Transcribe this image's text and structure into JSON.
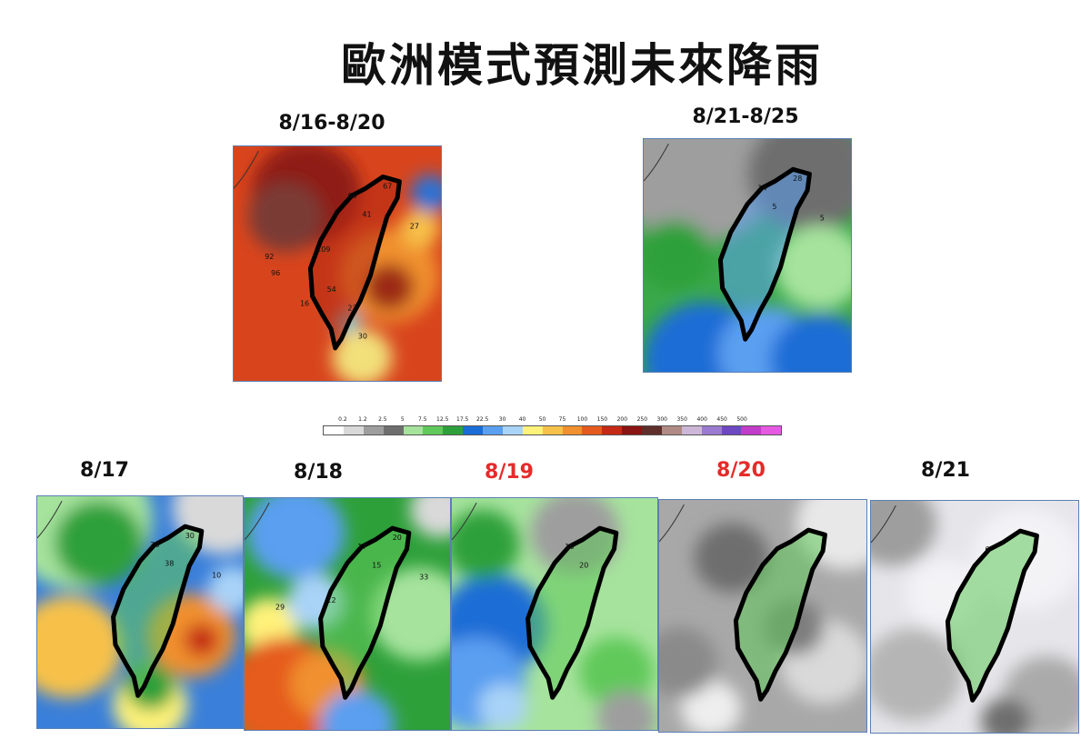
{
  "title": "歐洲模式預測未來降雨",
  "top_panels": [
    {
      "label": "8/16-8/20",
      "label_color": "#111111",
      "scheme": "heavy",
      "values": [
        "60",
        "41",
        "67",
        "27",
        "109",
        "92",
        "96",
        "54",
        "16",
        "23",
        "30"
      ]
    },
    {
      "label": "8/21-8/25",
      "label_color": "#111111",
      "scheme": "wet",
      "values": [
        "14",
        "5",
        "28",
        "5"
      ]
    }
  ],
  "bottom_panels": [
    {
      "label": "8/17",
      "label_color": "#111111",
      "scheme": "warm",
      "values": [
        "28",
        "38",
        "30",
        "10"
      ]
    },
    {
      "label": "8/18",
      "label_color": "#111111",
      "scheme": "mixed",
      "values": [
        "17",
        "15",
        "20",
        "33",
        "12",
        "29"
      ]
    },
    {
      "label": "8/19",
      "label_color": "#e62a2a",
      "scheme": "greenblue",
      "values": [
        "16",
        "20"
      ]
    },
    {
      "label": "8/20",
      "label_color": "#e62a2a",
      "scheme": "gray",
      "values": []
    },
    {
      "label": "8/21",
      "label_color": "#111111",
      "scheme": "light",
      "values": [
        "6"
      ]
    }
  ],
  "colorbar": {
    "ticks": [
      "0.2",
      "1.2",
      "2.5",
      "5",
      "7.5",
      "12.5",
      "17.5",
      "22.5",
      "30",
      "40",
      "50",
      "75",
      "100",
      "150",
      "200",
      "250",
      "300",
      "350",
      "400",
      "450",
      "500"
    ],
    "colors": [
      "#ffffff",
      "#d9d9d9",
      "#9e9e9e",
      "#6e6e6e",
      "#a6e39d",
      "#61c95a",
      "#2ea03a",
      "#1a6dd6",
      "#5a9ff0",
      "#a9d3f7",
      "#fff27a",
      "#f7c14a",
      "#f0902e",
      "#e55b1f",
      "#c42a15",
      "#8a1411",
      "#5e2e2a",
      "#b08a84",
      "#cdb7d8",
      "#9a7bd1",
      "#6e47c2",
      "#c13cc8",
      "#e55ae0"
    ]
  }
}
